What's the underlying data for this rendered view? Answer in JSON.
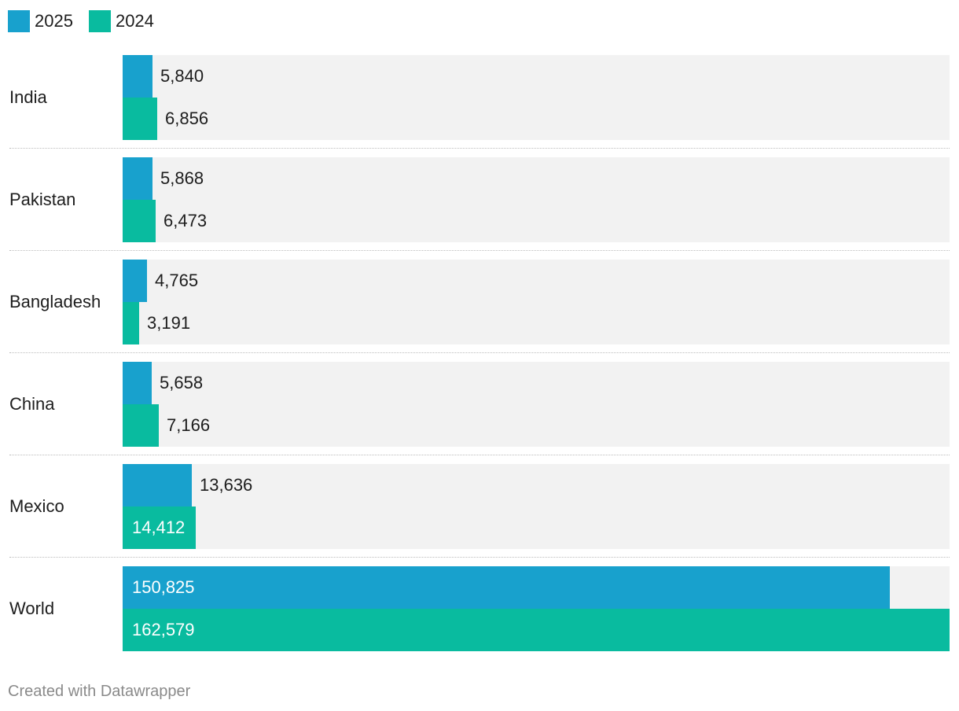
{
  "chart_data": {
    "type": "bar",
    "orientation": "horizontal",
    "categories": [
      "India",
      "Pakistan",
      "Bangladesh",
      "China",
      "Mexico",
      "World"
    ],
    "series": [
      {
        "name": "2025",
        "color": "#18a1cd",
        "values": [
          5840,
          5868,
          4765,
          5658,
          13636,
          150825
        ]
      },
      {
        "name": "2024",
        "color": "#09bb9f",
        "values": [
          6856,
          6473,
          3191,
          7166,
          14412,
          162579
        ]
      }
    ],
    "xlim": [
      0,
      162579
    ],
    "legend_position": "top-left",
    "background_track_color": "#f2f2f2",
    "value_labels": [
      "5,840",
      "6,856",
      "5,868",
      "6,473",
      "4,765",
      "3,191",
      "5,658",
      "7,166",
      "13,636",
      "14,412",
      "150,825",
      "162,579"
    ]
  },
  "legend": [
    {
      "label": "2025",
      "color": "#18a1cd"
    },
    {
      "label": "2024",
      "color": "#09bb9f"
    }
  ],
  "footer": "Created with Datawrapper"
}
